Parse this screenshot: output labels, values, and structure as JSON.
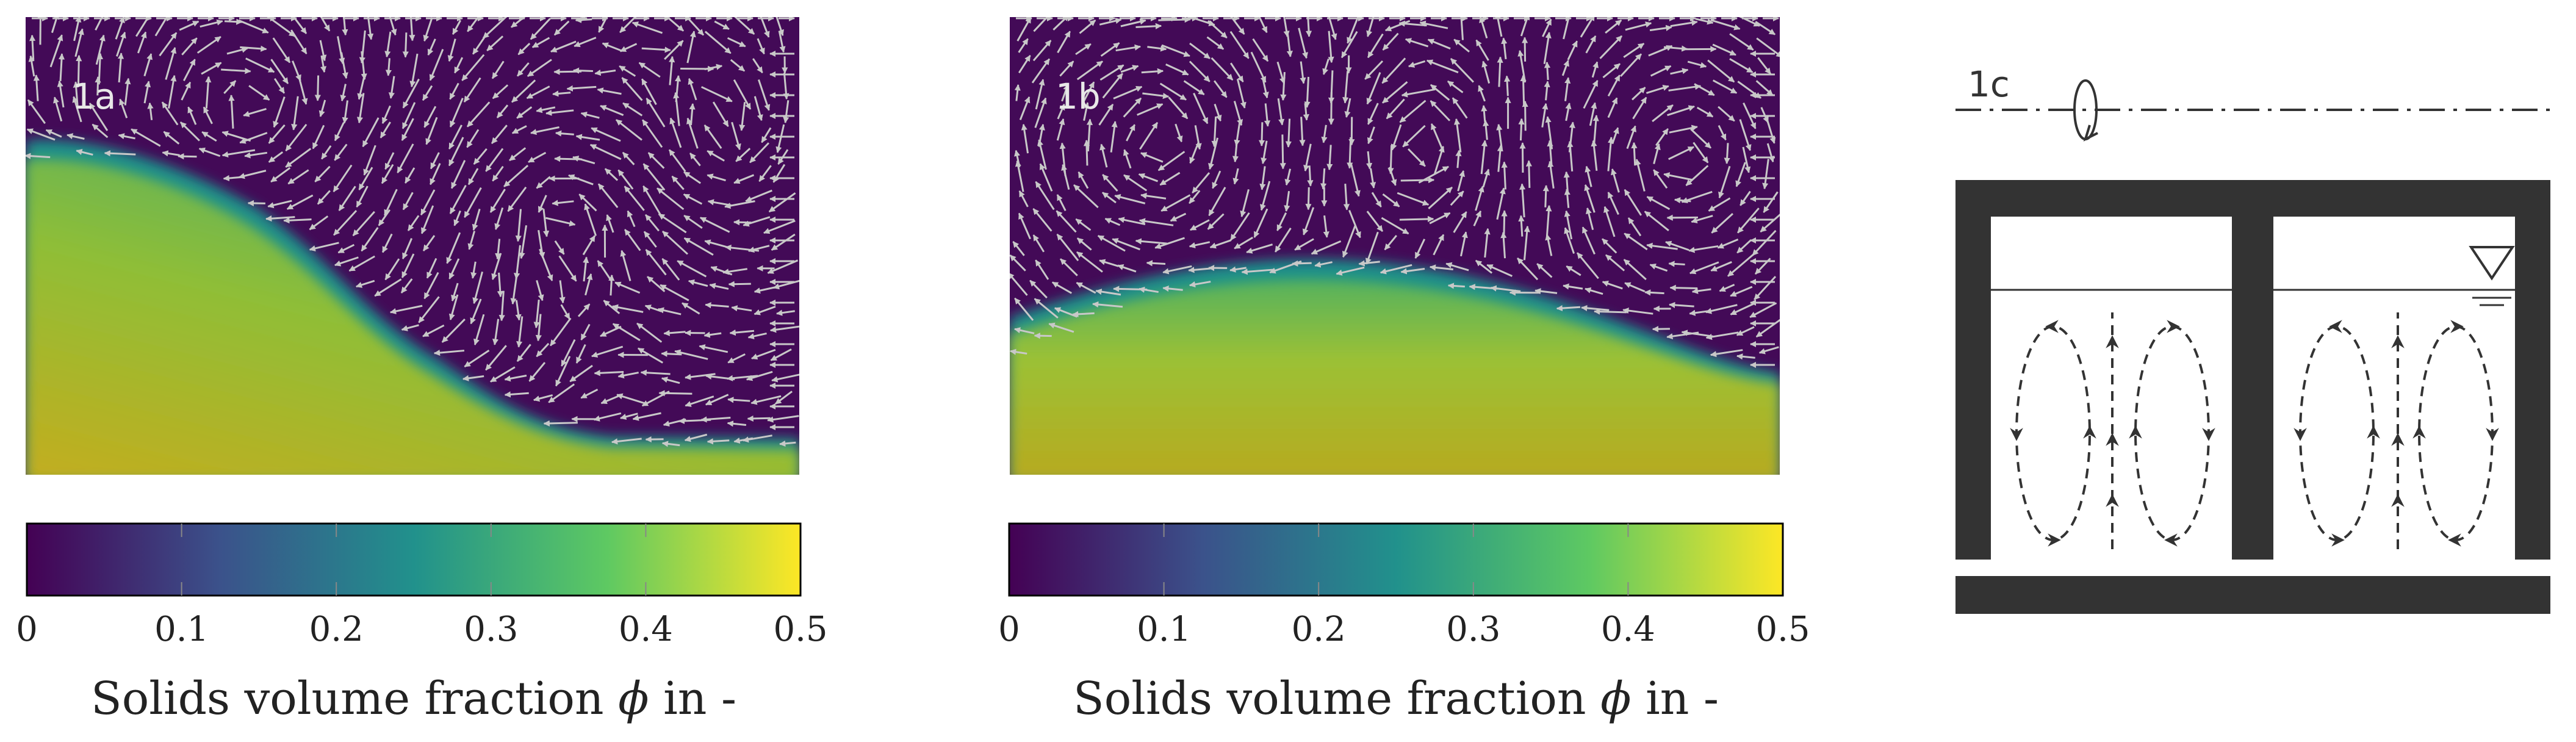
{
  "panels": [
    {
      "label": "1a",
      "colorbar": {
        "ticks": [
          "0",
          "0.1",
          "0.2",
          "0.3",
          "0.4",
          "0.5"
        ],
        "caption_pre": "Solids volume fraction ",
        "caption_symbol": "ϕ",
        "caption_post": " in -"
      }
    },
    {
      "label": "1b",
      "colorbar": {
        "ticks": [
          "0",
          "0.1",
          "0.2",
          "0.3",
          "0.4",
          "0.5"
        ],
        "caption_pre": "Solids volume fraction ",
        "caption_symbol": "ϕ",
        "caption_post": " in -"
      }
    },
    {
      "label": "1c"
    }
  ],
  "colormap": [
    "#440154",
    "#3b528b",
    "#21918c",
    "#5ec962",
    "#fde725"
  ],
  "colors": {
    "background_fluid": "#430a57",
    "vector_arrow": "#c8c8c8",
    "wall": "#333333",
    "bed_high": "#b5ab1f",
    "bed_edge": "#1f8f8a"
  },
  "phi_range": [
    0,
    0.5
  ]
}
